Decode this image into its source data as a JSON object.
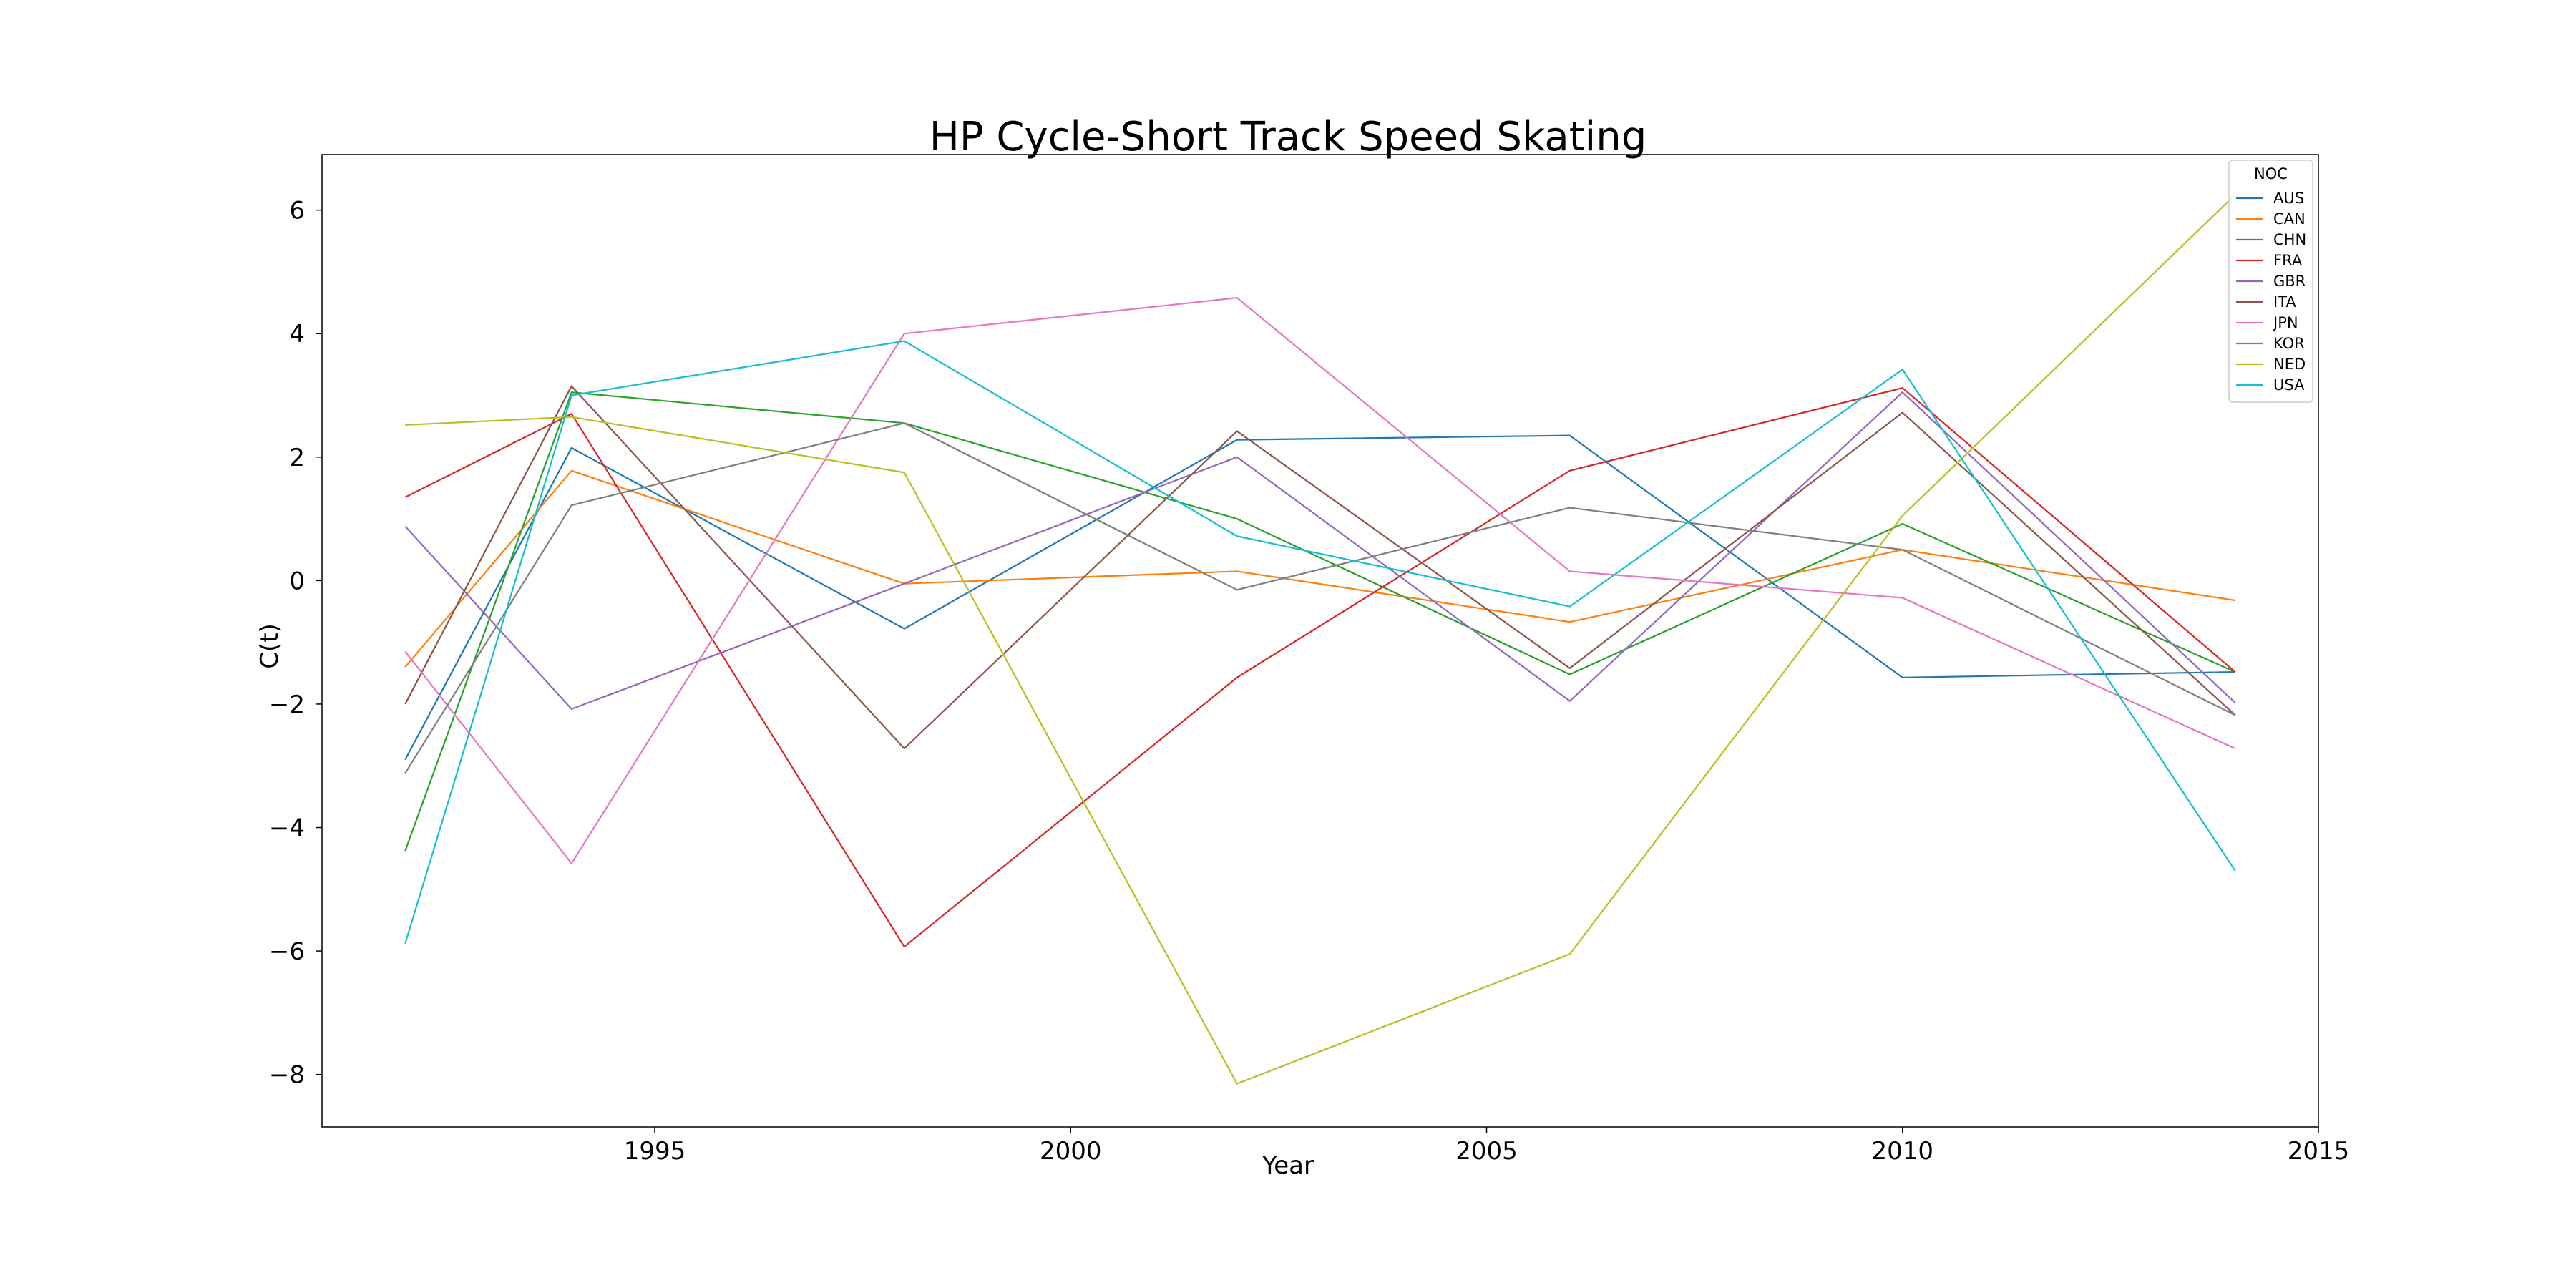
{
  "chart_data": {
    "type": "line",
    "title": "HP Cycle-Short Track Speed Skating",
    "xlabel": "Year",
    "ylabel": "C(t)",
    "xlim": [
      1991,
      2015
    ],
    "ylim": [
      -8.85,
      6.9
    ],
    "x_ticks": [
      1995,
      2000,
      2005,
      2010,
      2015
    ],
    "y_ticks": [
      6,
      4,
      2,
      0,
      -2,
      -4,
      -6,
      -8
    ],
    "x_tick_labels": [
      "1995",
      "2000",
      "2005",
      "2010",
      "2015"
    ],
    "y_tick_labels": [
      "6",
      "4",
      "2",
      "0",
      "−2",
      "−4",
      "−6",
      "−8"
    ],
    "grid": false,
    "legend_position": "top-right",
    "legend_title": "NOC",
    "x": [
      1992,
      1994,
      1998,
      2002,
      2006,
      2010,
      2014
    ],
    "series": [
      {
        "name": "AUS",
        "color": "#1f77b4",
        "values": [
          -2.9,
          2.15,
          -0.78,
          2.28,
          2.35,
          -1.57,
          -1.48
        ]
      },
      {
        "name": "CAN",
        "color": "#ff7f0e",
        "values": [
          -1.4,
          1.78,
          -0.05,
          0.15,
          -0.67,
          0.5,
          -0.32
        ]
      },
      {
        "name": "CHN",
        "color": "#2ca02c",
        "values": [
          -4.38,
          3.05,
          2.55,
          1.0,
          -1.52,
          0.92,
          -1.48
        ]
      },
      {
        "name": "FRA",
        "color": "#d62728",
        "values": [
          1.35,
          2.7,
          -5.93,
          -1.57,
          1.78,
          3.12,
          -1.48
        ]
      },
      {
        "name": "GBR",
        "color": "#9467bd",
        "values": [
          0.88,
          -2.08,
          -0.05,
          2.0,
          -1.95,
          3.05,
          -1.98
        ]
      },
      {
        "name": "ITA",
        "color": "#8c564b",
        "values": [
          -2.0,
          3.15,
          -2.72,
          2.42,
          -1.42,
          2.72,
          -2.18
        ]
      },
      {
        "name": "JPN",
        "color": "#e377c2",
        "values": [
          -1.15,
          -4.58,
          4.0,
          4.58,
          0.15,
          -0.28,
          -2.72
        ]
      },
      {
        "name": "KOR",
        "color": "#7f7f7f",
        "values": [
          -3.12,
          1.22,
          2.55,
          -0.15,
          1.18,
          0.5,
          -2.18
        ]
      },
      {
        "name": "NED",
        "color": "#bcbd22",
        "values": [
          2.52,
          2.65,
          1.75,
          -8.15,
          -6.05,
          1.05,
          6.25
        ]
      },
      {
        "name": "USA",
        "color": "#17becf",
        "values": [
          -5.88,
          3.0,
          3.88,
          0.72,
          -0.42,
          3.42,
          -4.7
        ]
      }
    ]
  }
}
